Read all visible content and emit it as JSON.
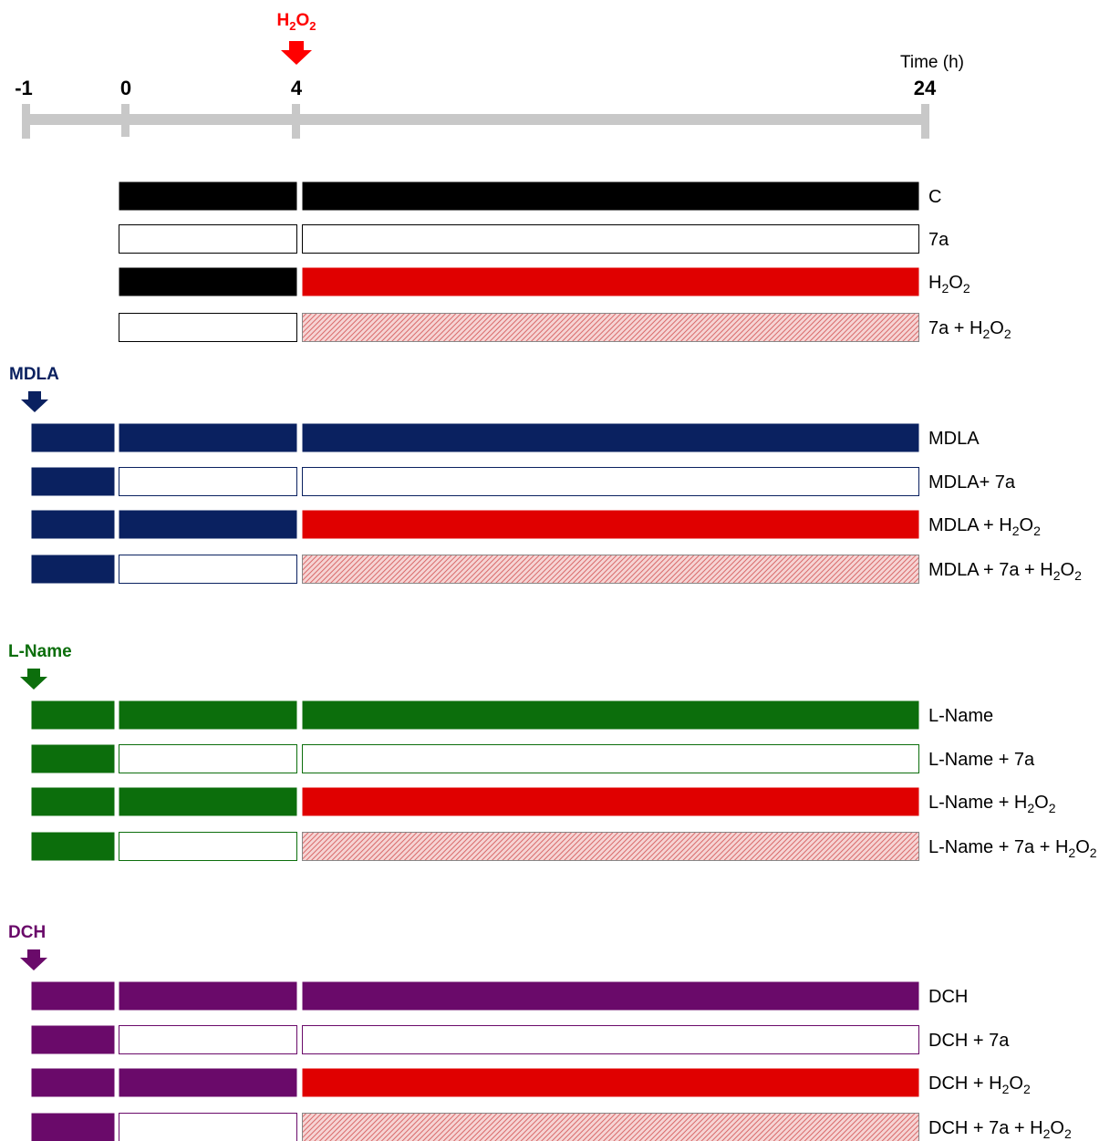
{
  "timeline": {
    "time_unit_label": "Time (h)",
    "ticks": [
      {
        "label": "-1",
        "value": -1
      },
      {
        "label": "0",
        "value": 0
      },
      {
        "label": "4",
        "value": 4
      },
      {
        "label": "24",
        "value": 24
      }
    ],
    "h2o2_marker": {
      "main": "H",
      "sub1": "2",
      "mid": "O",
      "sub2": "2",
      "at_time": 4,
      "color": "#ff0000"
    }
  },
  "colors": {
    "axis": "#c8c8c8",
    "black": "#000000",
    "red": "#e00000",
    "hatch_red": "#e88a8a",
    "white": "#ffffff",
    "outline": "#555555",
    "mdla": "#0a2160",
    "lname": "#0c6e0c",
    "dch": "#6a0a6a"
  },
  "groups": [
    {
      "id": "control",
      "inhibitor_label": "",
      "color": "black",
      "rows": [
        {
          "label_parts": [
            "C"
          ],
          "pre": null,
          "phase1": "fill",
          "phase2": "fill"
        },
        {
          "label_parts": [
            "7a"
          ],
          "pre": null,
          "phase1": "white",
          "phase2": "white"
        },
        {
          "label_parts": [
            "H",
            "_2",
            "O",
            "_2"
          ],
          "pre": null,
          "phase1": "fill",
          "phase2": "red"
        },
        {
          "label_parts": [
            "7a + H",
            "_2",
            "O",
            "_2"
          ],
          "pre": null,
          "phase1": "white",
          "phase2": "hatch"
        }
      ]
    },
    {
      "id": "mdla",
      "inhibitor_label": "MDLA",
      "color": "mdla",
      "rows": [
        {
          "label_parts": [
            "MDLA"
          ],
          "pre": "fill",
          "phase1": "fill",
          "phase2": "fill"
        },
        {
          "label_parts": [
            "MDLA+ 7a"
          ],
          "pre": "fill",
          "phase1": "white",
          "phase2": "white"
        },
        {
          "label_parts": [
            "MDLA + H",
            "_2",
            "O",
            "_2"
          ],
          "pre": "fill",
          "phase1": "fill",
          "phase2": "red"
        },
        {
          "label_parts": [
            "MDLA + 7a + H",
            "_2",
            "O",
            "_2"
          ],
          "pre": "fill",
          "phase1": "white",
          "phase2": "hatch"
        }
      ]
    },
    {
      "id": "lname",
      "inhibitor_label": "L-Name",
      "color": "lname",
      "rows": [
        {
          "label_parts": [
            "L-Name"
          ],
          "pre": "fill",
          "phase1": "fill",
          "phase2": "fill"
        },
        {
          "label_parts": [
            "L-Name + 7a"
          ],
          "pre": "fill",
          "phase1": "white",
          "phase2": "white"
        },
        {
          "label_parts": [
            "L-Name + H",
            "_2",
            "O",
            "_2"
          ],
          "pre": "fill",
          "phase1": "fill",
          "phase2": "red"
        },
        {
          "label_parts": [
            "L-Name + 7a + H",
            "_2",
            "O",
            "_2"
          ],
          "pre": "fill",
          "phase1": "white",
          "phase2": "hatch"
        }
      ]
    },
    {
      "id": "dch",
      "inhibitor_label": "DCH",
      "color": "dch",
      "rows": [
        {
          "label_parts": [
            "DCH"
          ],
          "pre": "fill",
          "phase1": "fill",
          "phase2": "fill"
        },
        {
          "label_parts": [
            "DCH + 7a"
          ],
          "pre": "fill",
          "phase1": "white",
          "phase2": "white"
        },
        {
          "label_parts": [
            "DCH + H",
            "_2",
            "O",
            "_2"
          ],
          "pre": "fill",
          "phase1": "fill",
          "phase2": "red"
        },
        {
          "label_parts": [
            "DCH + 7a + H",
            "_2",
            "O",
            "_2"
          ],
          "pre": "fill",
          "phase1": "white",
          "phase2": "hatch"
        }
      ]
    }
  ]
}
